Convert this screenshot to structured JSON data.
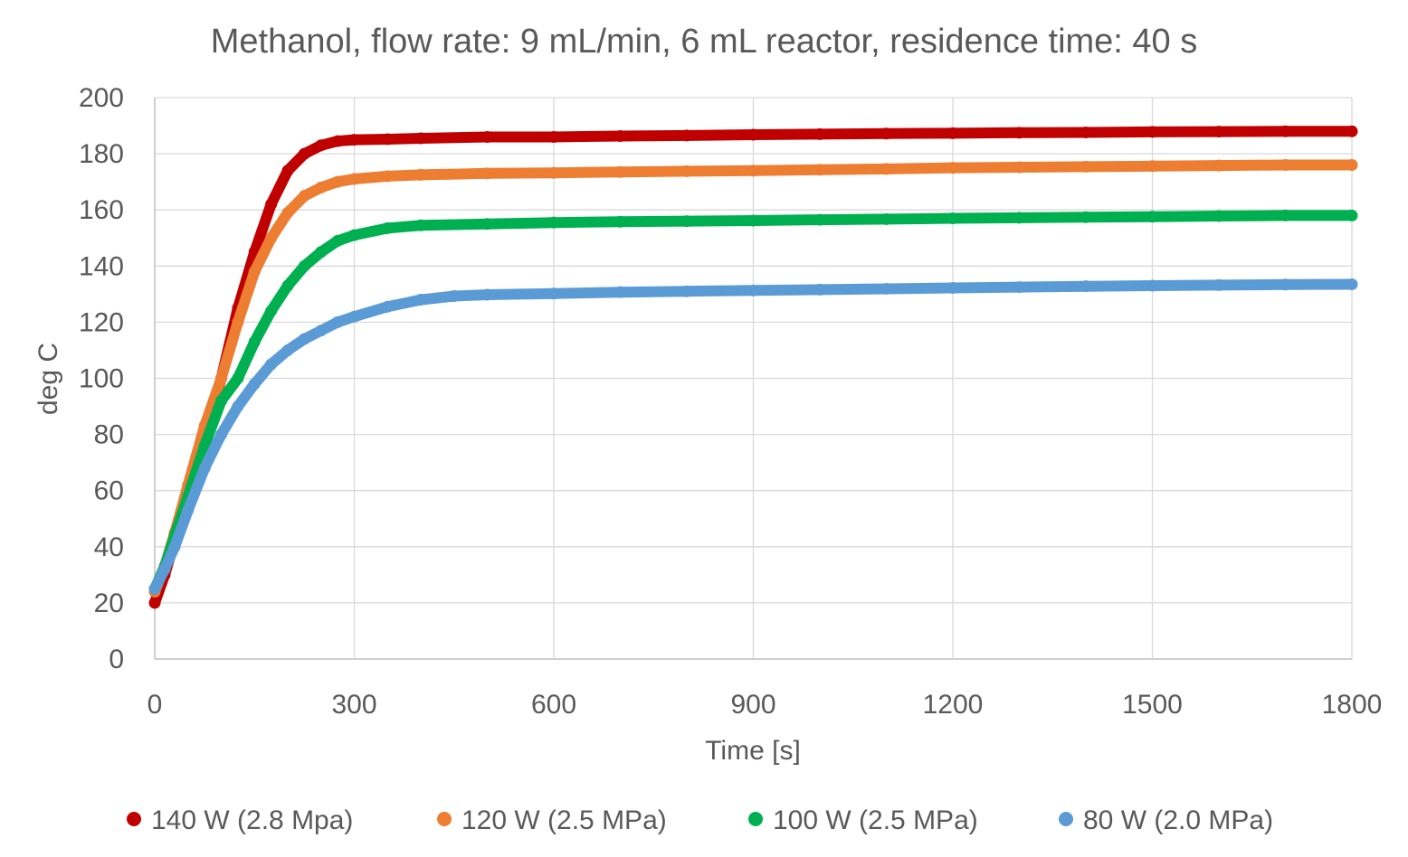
{
  "chart_data": {
    "type": "scatter",
    "title": "Methanol, flow rate: 9 mL/min, 6 mL reactor, residence time: 40 s",
    "xlabel": "Time [s]",
    "ylabel": "deg C",
    "xlim": [
      0,
      1800
    ],
    "ylim": [
      0,
      200
    ],
    "xticks": [
      0,
      300,
      600,
      900,
      1200,
      1500,
      1800
    ],
    "yticks": [
      0,
      20,
      40,
      60,
      80,
      100,
      120,
      140,
      160,
      180,
      200
    ],
    "xtick_labels": [
      "0",
      "300",
      "600",
      "900",
      "1200",
      "1500",
      "1800"
    ],
    "ytick_labels": [
      "0",
      "20",
      "40",
      "60",
      "80",
      "100",
      "120",
      "140",
      "160",
      "180",
      "200"
    ],
    "grid": true,
    "legend_position": "bottom",
    "series": [
      {
        "name": "140 W (2.8 Mpa)",
        "color": "#c00000",
        "x": [
          0,
          15,
          30,
          50,
          75,
          100,
          125,
          150,
          175,
          200,
          225,
          250,
          275,
          300,
          350,
          400,
          500,
          600,
          700,
          800,
          900,
          1000,
          1100,
          1200,
          1300,
          1400,
          1500,
          1600,
          1700,
          1800
        ],
        "y": [
          20,
          30,
          42,
          58,
          78,
          100,
          125,
          145,
          162,
          174,
          180,
          183,
          184.5,
          185,
          185.2,
          185.5,
          186,
          186,
          186.3,
          186.5,
          186.8,
          187,
          187.2,
          187.3,
          187.5,
          187.6,
          187.8,
          187.9,
          188,
          188
        ]
      },
      {
        "name": "120 W (2.5 MPa)",
        "color": "#ed7d31",
        "x": [
          0,
          15,
          30,
          50,
          75,
          100,
          125,
          150,
          175,
          200,
          225,
          250,
          275,
          300,
          350,
          400,
          500,
          600,
          700,
          800,
          900,
          1000,
          1100,
          1200,
          1300,
          1400,
          1500,
          1600,
          1700,
          1800
        ],
        "y": [
          24,
          33,
          45,
          62,
          83,
          100,
          120,
          138,
          150,
          159,
          165,
          168,
          170,
          171,
          172,
          172.5,
          173,
          173.2,
          173.5,
          173.8,
          174,
          174.3,
          174.6,
          175,
          175.2,
          175.4,
          175.6,
          175.8,
          176,
          176
        ]
      },
      {
        "name": "100 W (2.5 MPa)",
        "color": "#00b050",
        "x": [
          0,
          15,
          30,
          50,
          75,
          100,
          125,
          150,
          175,
          200,
          225,
          250,
          275,
          300,
          350,
          400,
          500,
          600,
          700,
          800,
          900,
          1000,
          1100,
          1200,
          1300,
          1400,
          1500,
          1600,
          1700,
          1800
        ],
        "y": [
          25,
          33,
          44,
          58,
          76,
          92,
          100,
          113,
          124,
          133,
          140,
          145,
          149,
          151,
          153.5,
          154.5,
          155,
          155.5,
          155.8,
          156,
          156.2,
          156.5,
          156.7,
          157,
          157.2,
          157.4,
          157.6,
          157.8,
          158,
          158
        ]
      },
      {
        "name": "80 W (2.0 MPa)",
        "color": "#5b9bd5",
        "x": [
          0,
          15,
          30,
          50,
          75,
          100,
          125,
          150,
          175,
          200,
          225,
          250,
          275,
          300,
          350,
          400,
          450,
          500,
          600,
          700,
          800,
          900,
          1000,
          1100,
          1200,
          1300,
          1400,
          1500,
          1600,
          1700,
          1800
        ],
        "y": [
          25,
          32,
          40,
          53,
          68,
          80,
          90,
          98,
          105,
          110,
          114,
          117,
          120,
          122,
          125.5,
          128,
          129.3,
          129.8,
          130.2,
          130.7,
          131,
          131.3,
          131.6,
          131.9,
          132.2,
          132.5,
          132.8,
          133,
          133.2,
          133.4,
          133.5
        ]
      }
    ]
  }
}
